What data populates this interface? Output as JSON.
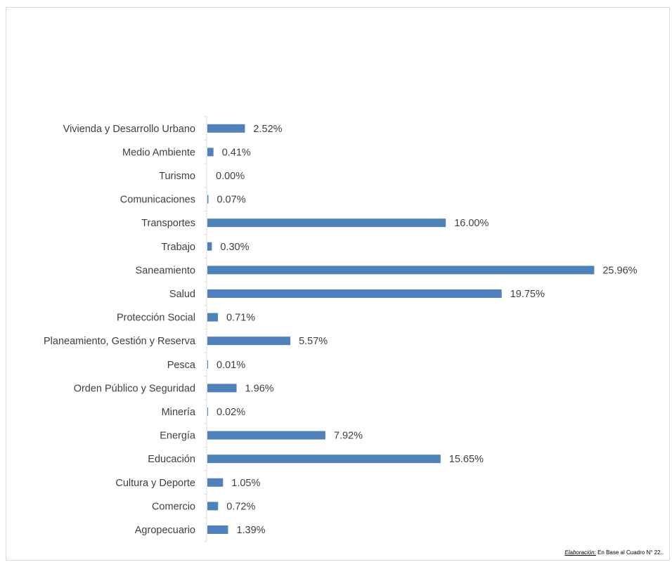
{
  "chart_data": {
    "type": "bar",
    "orientation": "horizontal",
    "categories": [
      "Vivienda y Desarrollo Urbano",
      "Medio Ambiente",
      "Turismo",
      "Comunicaciones",
      "Transportes",
      "Trabajo",
      "Saneamiento",
      "Salud",
      "Protección Social",
      "Planeamiento, Gestión y Reserva",
      "Pesca",
      "Orden Público y Seguridad",
      "Minería",
      "Energía",
      "Educación",
      "Cultura y Deporte",
      "Comercio",
      "Agropecuario"
    ],
    "values": [
      2.52,
      0.41,
      0.0,
      0.07,
      16.0,
      0.3,
      25.96,
      19.75,
      0.71,
      5.57,
      0.01,
      1.96,
      0.02,
      7.92,
      15.65,
      1.05,
      0.72,
      1.39
    ],
    "labels": [
      "2.52%",
      "0.41%",
      "0.00%",
      "0.07%",
      "16.00%",
      "0.30%",
      "25.96%",
      "19.75%",
      "0.71%",
      "5.57%",
      "0.01%",
      "1.96%",
      "0.02%",
      "7.92%",
      "15.65%",
      "1.05%",
      "0.72%",
      "1.39%"
    ],
    "xlim": [
      0,
      30
    ],
    "bar_color": "#4f81bd",
    "grid": false,
    "legend": "none"
  },
  "footnote": {
    "lead": "Elaboración:",
    "text": " En Base al Cuadro N° 22.."
  }
}
